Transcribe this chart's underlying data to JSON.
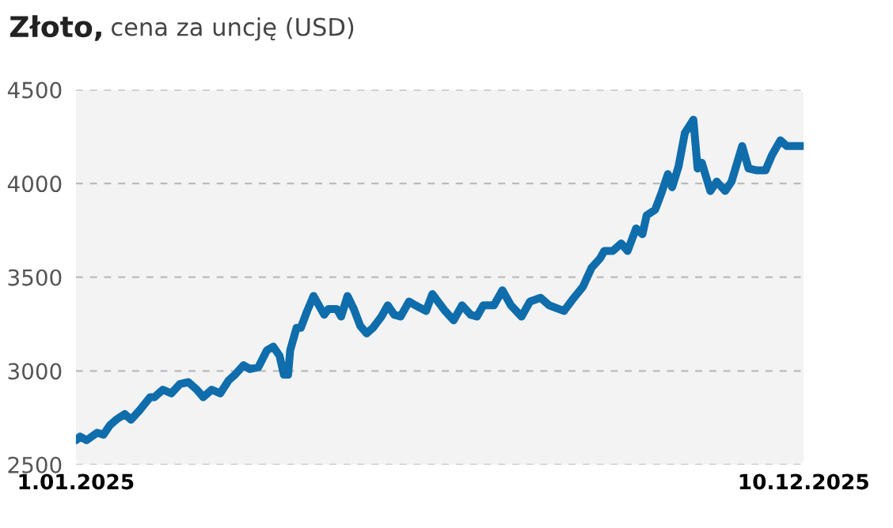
{
  "chart_data": {
    "type": "line",
    "title": "Złoto,",
    "subtitle": "cena za uncję (USD)",
    "x": [
      "2025-01-01",
      "2025-01-03",
      "2025-01-06",
      "2025-01-11",
      "2025-01-14",
      "2025-01-17",
      "2025-01-20",
      "2025-01-24",
      "2025-01-27",
      "2025-01-31",
      "2025-02-05",
      "2025-02-07",
      "2025-02-11",
      "2025-02-15",
      "2025-02-19",
      "2025-02-23",
      "2025-02-27",
      "2025-03-02",
      "2025-03-06",
      "2025-03-10",
      "2025-03-14",
      "2025-03-17",
      "2025-03-21",
      "2025-03-24",
      "2025-03-28",
      "2025-04-01",
      "2025-04-04",
      "2025-04-07",
      "2025-04-09",
      "2025-04-11",
      "2025-04-12",
      "2025-04-15",
      "2025-04-17",
      "2025-04-20",
      "2025-04-23",
      "2025-04-25",
      "2025-04-28",
      "2025-04-30",
      "2025-05-04",
      "2025-05-06",
      "2025-05-09",
      "2025-05-12",
      "2025-05-15",
      "2025-05-18",
      "2025-05-21",
      "2025-05-25",
      "2025-05-28",
      "2025-05-31",
      "2025-06-03",
      "2025-06-07",
      "2025-06-10",
      "2025-06-15",
      "2025-06-18",
      "2025-06-20",
      "2025-06-24",
      "2025-06-28",
      "2025-07-02",
      "2025-07-06",
      "2025-07-09",
      "2025-07-12",
      "2025-07-17",
      "2025-07-21",
      "2025-07-25",
      "2025-07-30",
      "2025-08-03",
      "2025-08-08",
      "2025-08-12",
      "2025-08-19",
      "2025-08-23",
      "2025-08-28",
      "2025-09-01",
      "2025-09-05",
      "2025-09-07",
      "2025-09-11",
      "2025-09-15",
      "2025-09-18",
      "2025-09-22",
      "2025-09-25",
      "2025-09-27",
      "2025-10-01",
      "2025-10-04",
      "2025-10-07",
      "2025-10-09",
      "2025-10-12",
      "2025-10-15",
      "2025-10-19",
      "2025-10-21",
      "2025-10-23",
      "2025-10-27",
      "2025-10-30",
      "2025-11-03",
      "2025-11-06",
      "2025-11-11",
      "2025-11-14",
      "2025-11-18",
      "2025-11-22",
      "2025-11-25",
      "2025-11-29",
      "2025-12-02",
      "2025-12-05",
      "2025-12-09",
      "2025-12-10"
    ],
    "series": [
      {
        "color": "#0f6dab",
        "values": [
          2630,
          2650,
          2630,
          2670,
          2660,
          2710,
          2740,
          2770,
          2740,
          2790,
          2860,
          2860,
          2900,
          2880,
          2930,
          2940,
          2900,
          2860,
          2900,
          2880,
          2950,
          2980,
          3030,
          3010,
          3020,
          3110,
          3130,
          3080,
          2980,
          2980,
          3110,
          3230,
          3230,
          3320,
          3400,
          3360,
          3300,
          3330,
          3330,
          3290,
          3400,
          3330,
          3240,
          3200,
          3230,
          3290,
          3350,
          3300,
          3290,
          3370,
          3350,
          3320,
          3410,
          3380,
          3320,
          3270,
          3350,
          3300,
          3290,
          3350,
          3350,
          3430,
          3350,
          3290,
          3370,
          3390,
          3350,
          3320,
          3380,
          3450,
          3550,
          3600,
          3640,
          3640,
          3680,
          3640,
          3760,
          3730,
          3830,
          3860,
          3950,
          4050,
          3980,
          4090,
          4270,
          4340,
          4080,
          4110,
          3960,
          4010,
          3960,
          4010,
          4200,
          4080,
          4070,
          4070,
          4150,
          4230,
          4200,
          4200,
          4200,
          4200
        ]
      }
    ],
    "xlim": [
      "2025-01-01",
      "2025-12-10"
    ],
    "xticks": [
      {
        "value": "2025-01-01",
        "label": "1.01.2025"
      },
      {
        "value": "2025-12-10",
        "label": "10.12.2025"
      }
    ],
    "ylim": [
      2500,
      4500
    ],
    "yticks": [
      2500,
      3000,
      3500,
      4000,
      4500
    ],
    "grid": "y",
    "legend": false,
    "marker": "none",
    "line_style": "solid"
  }
}
